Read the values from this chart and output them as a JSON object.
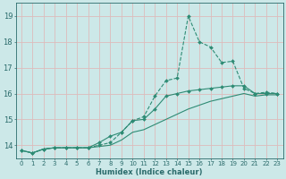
{
  "xlabel": "Humidex (Indice chaleur)",
  "bg_color": "#cce8e8",
  "grid_color": "#ddbbbb",
  "line_color": "#2e8b74",
  "xlim": [
    -0.5,
    23.5
  ],
  "ylim": [
    13.5,
    19.5
  ],
  "yticks": [
    14,
    15,
    16,
    17,
    18,
    19
  ],
  "xticks": [
    0,
    1,
    2,
    3,
    4,
    5,
    6,
    7,
    8,
    9,
    10,
    11,
    12,
    13,
    14,
    15,
    16,
    17,
    18,
    19,
    20,
    21,
    22,
    23
  ],
  "series1_x": [
    0,
    1,
    2,
    3,
    4,
    5,
    6,
    7,
    8,
    9,
    10,
    11,
    12,
    13,
    14,
    15,
    16,
    17,
    18,
    19,
    20,
    21,
    22,
    23
  ],
  "series1_y": [
    13.8,
    13.7,
    13.85,
    13.9,
    13.9,
    13.9,
    13.9,
    14.0,
    14.1,
    14.5,
    14.95,
    15.1,
    15.9,
    16.5,
    16.6,
    19.0,
    18.0,
    17.8,
    17.2,
    17.25,
    16.2,
    16.0,
    16.05,
    16.0
  ],
  "series2_x": [
    0,
    1,
    2,
    3,
    4,
    5,
    6,
    7,
    8,
    9,
    10,
    11,
    12,
    13,
    14,
    15,
    16,
    17,
    18,
    19,
    20,
    21,
    22,
    23
  ],
  "series2_y": [
    13.8,
    13.7,
    13.85,
    13.9,
    13.9,
    13.9,
    13.9,
    14.1,
    14.35,
    14.5,
    14.95,
    15.0,
    15.4,
    15.9,
    16.0,
    16.1,
    16.15,
    16.2,
    16.25,
    16.3,
    16.3,
    16.0,
    16.0,
    16.0
  ],
  "series3_x": [
    0,
    1,
    2,
    3,
    4,
    5,
    6,
    7,
    8,
    9,
    10,
    11,
    12,
    13,
    14,
    15,
    16,
    17,
    18,
    19,
    20,
    21,
    22,
    23
  ],
  "series3_y": [
    13.8,
    13.7,
    13.85,
    13.9,
    13.9,
    13.9,
    13.9,
    13.95,
    14.0,
    14.2,
    14.5,
    14.6,
    14.8,
    15.0,
    15.2,
    15.4,
    15.55,
    15.7,
    15.8,
    15.9,
    16.0,
    15.9,
    15.95,
    15.95
  ],
  "tick_color": "#2a6b6b",
  "xlabel_fontsize": 6.0,
  "ytick_fontsize": 6.0,
  "xtick_fontsize": 5.0
}
